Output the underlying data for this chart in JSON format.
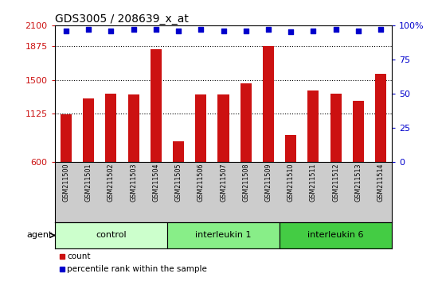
{
  "title": "GDS3005 / 208639_x_at",
  "samples": [
    "GSM211500",
    "GSM211501",
    "GSM211502",
    "GSM211503",
    "GSM211504",
    "GSM211505",
    "GSM211506",
    "GSM211507",
    "GSM211508",
    "GSM211509",
    "GSM211510",
    "GSM211511",
    "GSM211512",
    "GSM211513",
    "GSM211514"
  ],
  "counts": [
    1120,
    1295,
    1345,
    1335,
    1840,
    820,
    1340,
    1335,
    1460,
    1870,
    890,
    1380,
    1345,
    1270,
    1565
  ],
  "percentiles": [
    96,
    97,
    96,
    97,
    97,
    96,
    97,
    96,
    96,
    97,
    95,
    96,
    97,
    96,
    97
  ],
  "bar_color": "#cc1111",
  "dot_color": "#0000cc",
  "baseline": 600,
  "ylim_left": [
    600,
    2100
  ],
  "yticks_left": [
    600,
    1125,
    1500,
    1875,
    2100
  ],
  "ylim_right": [
    0,
    100
  ],
  "yticks_right": [
    0,
    25,
    50,
    75,
    100
  ],
  "hlines": [
    1125,
    1500,
    1875
  ],
  "groups": [
    {
      "label": "control",
      "start": 0,
      "end": 4,
      "color": "#ccffcc"
    },
    {
      "label": "interleukin 1",
      "start": 5,
      "end": 9,
      "color": "#88ee88"
    },
    {
      "label": "interleukin 6",
      "start": 10,
      "end": 14,
      "color": "#44cc44"
    }
  ],
  "agent_label": "agent",
  "legend_count_label": "count",
  "legend_percentile_label": "percentile rank within the sample",
  "xtick_bg": "#cccccc",
  "title_fontsize": 10,
  "bar_width": 0.5
}
